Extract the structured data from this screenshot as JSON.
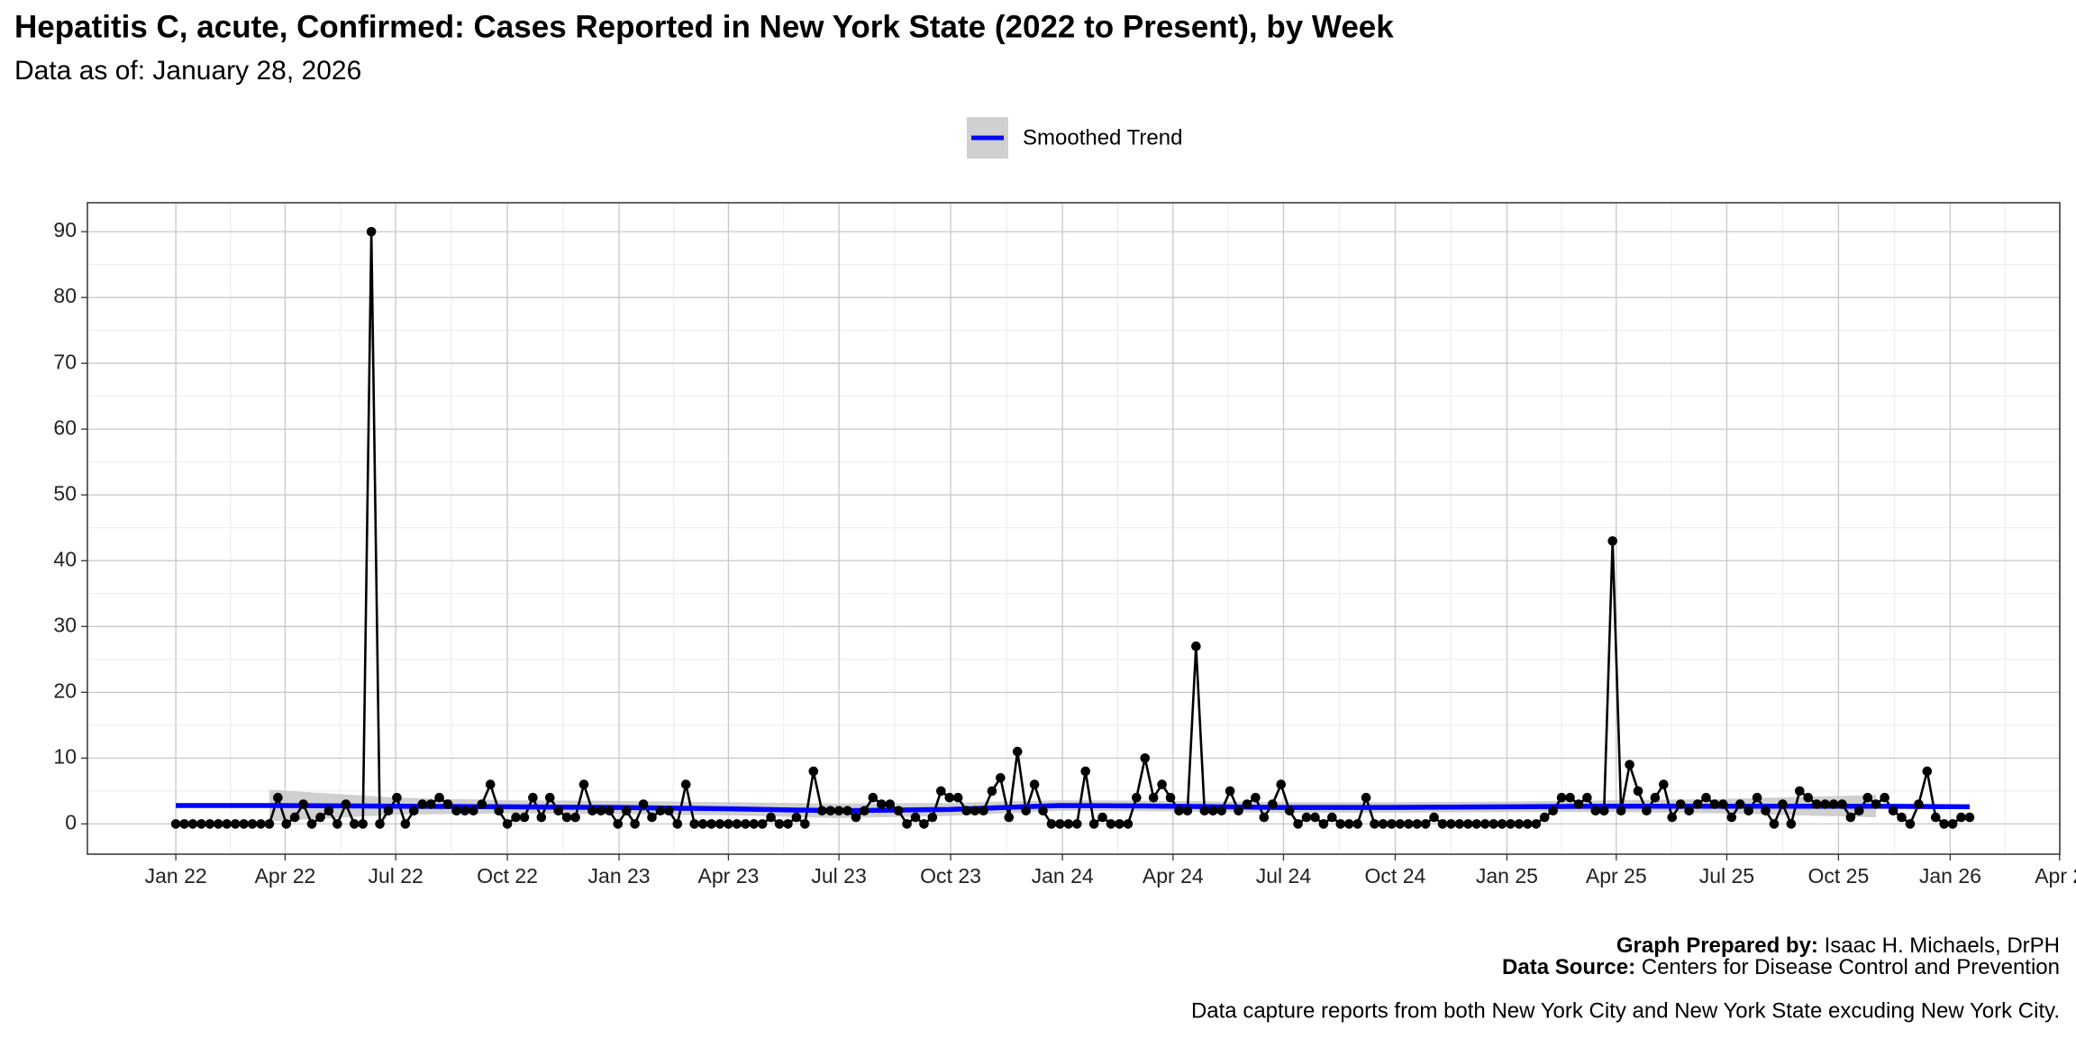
{
  "chart_data": {
    "type": "line",
    "title": "Hepatitis C, acute, Confirmed: Cases Reported in New York State (2022 to Present), by Week",
    "subtitle": "Data as of: January 28, 2026",
    "caption": {
      "prepared_label": "Graph Prepared by:",
      "prepared": "Isaac H. Michaels, DrPH",
      "source_label": "Data Source:",
      "source": "Centers for Disease Control and Prevention",
      "note": "Data capture reports from both New York City and New York State excuding New York City."
    },
    "grid": true,
    "xlim": [
      -10.4,
      221.6
    ],
    "xticks": [
      {
        "value": 0,
        "label": "Jan 22"
      },
      {
        "value": 12.86,
        "label": "Apr 22"
      },
      {
        "value": 25.86,
        "label": "Jul 22"
      },
      {
        "value": 39,
        "label": "Oct 22"
      },
      {
        "value": 52.14,
        "label": "Jan 23"
      },
      {
        "value": 65,
        "label": "Apr 23"
      },
      {
        "value": 78,
        "label": "Jul 23"
      },
      {
        "value": 91.14,
        "label": "Oct 23"
      },
      {
        "value": 104.29,
        "label": "Jan 24"
      },
      {
        "value": 117.29,
        "label": "Apr 24"
      },
      {
        "value": 130.29,
        "label": "Jul 24"
      },
      {
        "value": 143.43,
        "label": "Oct 24"
      },
      {
        "value": 156.57,
        "label": "Jan 25"
      },
      {
        "value": 169.43,
        "label": "Apr 25"
      },
      {
        "value": 182.43,
        "label": "Jul 25"
      },
      {
        "value": 195.57,
        "label": "Oct 25"
      },
      {
        "value": 208.71,
        "label": "Jan 26"
      },
      {
        "value": 221.57,
        "label": "Apr 2"
      }
    ],
    "ylim": [
      -4.6,
      94.4
    ],
    "yticks": [
      0,
      10,
      20,
      30,
      40,
      50,
      60,
      70,
      80,
      90
    ],
    "x": [
      0,
      1,
      2,
      3,
      4,
      5,
      6,
      7,
      8,
      9,
      10,
      11,
      12,
      13,
      14,
      15,
      16,
      17,
      18,
      19,
      20,
      21,
      22,
      23,
      24,
      25,
      26,
      27,
      28,
      29,
      30,
      31,
      32,
      33,
      34,
      35,
      36,
      37,
      38,
      39,
      40,
      41,
      42,
      43,
      44,
      45,
      46,
      47,
      48,
      49,
      50,
      51,
      52,
      53,
      54,
      55,
      56,
      57,
      58,
      59,
      60,
      61,
      62,
      63,
      64,
      65,
      66,
      67,
      68,
      69,
      70,
      71,
      72,
      73,
      74,
      75,
      76,
      77,
      78,
      79,
      80,
      81,
      82,
      83,
      84,
      85,
      86,
      87,
      88,
      89,
      90,
      91,
      92,
      93,
      94,
      95,
      96,
      97,
      98,
      99,
      100,
      101,
      102,
      103,
      104,
      105,
      106,
      107,
      108,
      109,
      110,
      111,
      112,
      113,
      114,
      115,
      116,
      117,
      118,
      119,
      120,
      121,
      122,
      123,
      124,
      125,
      126,
      127,
      128,
      129,
      130,
      131,
      132,
      133,
      134,
      135,
      136,
      137,
      138,
      139,
      140,
      141,
      142,
      143,
      144,
      145,
      146,
      147,
      148,
      149,
      150,
      151,
      152,
      153,
      154,
      155,
      156,
      157,
      158,
      159,
      160,
      161,
      162,
      163,
      164,
      165,
      166,
      167,
      168,
      169,
      170,
      171,
      172,
      173,
      174,
      175,
      176,
      177,
      178,
      179,
      180,
      181,
      182,
      183,
      184,
      185,
      186,
      187,
      188,
      189,
      190,
      191,
      192,
      193,
      194,
      195,
      196,
      197,
      198,
      199,
      200,
      201,
      202,
      203,
      204,
      205,
      206,
      207,
      208,
      209,
      210,
      211
    ],
    "series": [
      {
        "color": "#000000",
        "values": [
          0,
          0,
          0,
          0,
          0,
          0,
          0,
          0,
          0,
          0,
          0,
          0,
          4,
          0,
          1,
          3,
          0,
          1,
          2,
          0,
          3,
          0,
          0,
          90,
          0,
          2,
          4,
          0,
          2,
          3,
          3,
          4,
          3,
          2,
          2,
          2,
          3,
          6,
          2,
          0,
          1,
          1,
          4,
          1,
          4,
          2,
          1,
          1,
          6,
          2,
          2,
          2,
          0,
          2,
          0,
          3,
          1,
          2,
          2,
          0,
          6,
          0,
          0,
          0,
          0,
          0,
          0,
          0,
          0,
          0,
          1,
          0,
          0,
          1,
          0,
          8,
          2,
          2,
          2,
          2,
          1,
          2,
          4,
          3,
          3,
          2,
          0,
          1,
          0,
          1,
          5,
          4,
          4,
          2,
          2,
          2,
          5,
          7,
          1,
          11,
          2,
          6,
          2,
          0,
          0,
          0,
          0,
          8,
          0,
          1,
          0,
          0,
          0,
          4,
          10,
          4,
          6,
          4,
          2,
          2,
          27,
          2,
          2,
          2,
          5,
          2,
          3,
          4,
          1,
          3,
          6,
          2,
          0,
          1,
          1,
          0,
          1,
          0,
          0,
          0,
          4,
          0,
          0,
          0,
          0,
          0,
          0,
          0,
          1,
          0,
          0,
          0,
          0,
          0,
          0,
          0,
          0,
          0,
          0,
          0,
          0,
          1,
          2,
          4,
          4,
          3,
          4,
          2,
          2,
          43,
          2,
          9,
          5,
          2,
          4,
          6,
          1,
          3,
          2,
          3,
          4,
          3,
          3,
          1,
          3,
          2,
          4,
          2,
          0,
          3,
          0,
          5,
          4,
          3,
          3,
          3,
          3,
          1,
          2,
          4,
          3,
          4,
          2,
          1,
          0,
          3,
          8,
          1,
          0,
          0,
          1,
          1
        ]
      },
      {
        "name": "Smoothed Trend",
        "color": "#0000ff",
        "band_color": "#c8c8c8",
        "x": [
          0,
          11,
          26,
          39,
          52,
          65,
          78,
          91,
          104,
          117,
          130,
          143,
          157,
          169,
          182,
          200,
          211
        ],
        "values": [
          2.8,
          2.8,
          2.7,
          2.6,
          2.5,
          2.3,
          2.0,
          2.2,
          2.8,
          2.7,
          2.5,
          2.5,
          2.6,
          2.7,
          2.7,
          2.7,
          2.6
        ],
        "upper": [
          null,
          5.2,
          4.0,
          3.6,
          3.5,
          3.3,
          3.1,
          3.2,
          3.6,
          3.5,
          3.3,
          3.3,
          3.4,
          3.6,
          3.8,
          4.4,
          null
        ],
        "lower": [
          null,
          0.4,
          1.4,
          1.6,
          1.5,
          1.3,
          0.9,
          1.2,
          2.0,
          1.9,
          1.7,
          1.7,
          1.8,
          1.8,
          1.6,
          1.0,
          null
        ]
      }
    ]
  }
}
